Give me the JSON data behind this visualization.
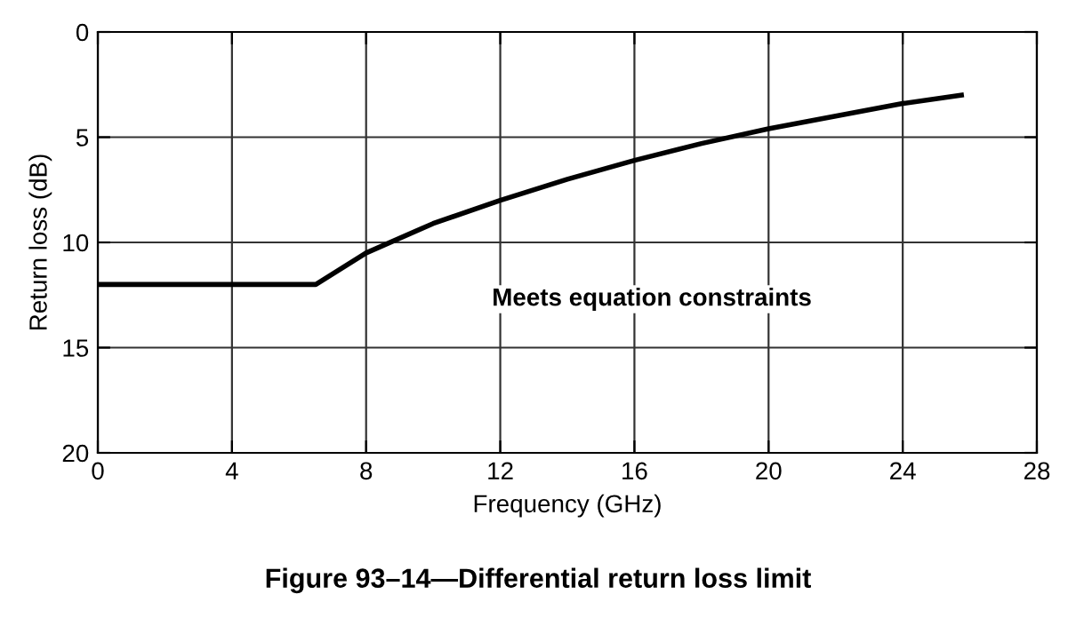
{
  "chart_data": {
    "type": "line",
    "title": "Figure 93–14—Differential return loss limit",
    "xlabel": "Frequency (GHz)",
    "ylabel": "Return loss (dB)",
    "x": [
      0,
      6.5,
      8,
      10,
      12,
      14,
      16,
      18,
      20,
      22,
      24,
      25.75
    ],
    "series": [
      {
        "color": "#000000",
        "values": [
          12,
          12,
          10.5,
          9.1,
          8.0,
          7.0,
          6.1,
          5.3,
          4.6,
          4.0,
          3.4,
          3.0
        ]
      }
    ],
    "xlim": [
      0,
      28
    ],
    "xticks": [
      0,
      4,
      8,
      12,
      16,
      20,
      24,
      28
    ],
    "ylim": [
      20,
      0
    ],
    "yticks": [
      0,
      5,
      10,
      15,
      20
    ],
    "grid": true,
    "marker": "none",
    "line_style": "solid",
    "annotations": [
      "Meets equation constraints"
    ]
  }
}
